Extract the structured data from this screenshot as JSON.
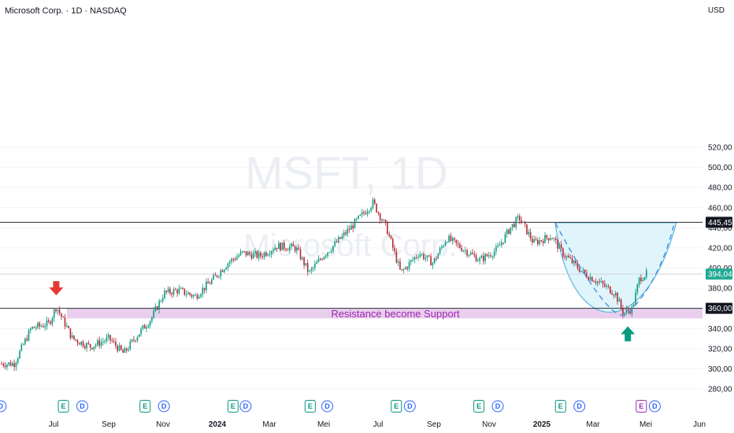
{
  "header": {
    "symbol_title": "Microsoft Corp. · 1D · NASDAQ",
    "currency": "USD"
  },
  "watermark": {
    "ticker": "MSFT, 1D",
    "company": "Microsoft Corp."
  },
  "colors": {
    "up": "#089981",
    "down": "#b22833",
    "zone": "#e1bee7",
    "zone_text": "#9c27b0",
    "bowl_fill": "#e0f4fb",
    "bowl_line": "#5ab8dc",
    "arrow_down": "#e53935",
    "arrow_up": "#089981",
    "price_tag_current": "#22ab94",
    "dividend": "#2962ff",
    "earnings": "#089981",
    "earnings_upcoming": "#9c27b0"
  },
  "chart_data": {
    "type": "candlestick",
    "ylim": [
      270,
      535
    ],
    "y_ticks": [
      "520,00",
      "500,00",
      "480,00",
      "460,00",
      "440,00",
      "420,00",
      "400,00",
      "380,00",
      "360,00",
      "340,00",
      "320,00",
      "300,00",
      "280,00"
    ],
    "x_ticks": [
      "Jul",
      "Sep",
      "Nov",
      "2024",
      "Mar",
      "Mei",
      "Jul",
      "Sep",
      "Nov",
      "2025",
      "Mar",
      "Mei",
      "Jun"
    ],
    "bold_x_ticks": [
      "2024",
      "2025"
    ],
    "price_path": [
      [
        "2023-06-01",
        305
      ],
      [
        "2023-06-20",
        340
      ],
      [
        "2023-07-10",
        345
      ],
      [
        "2023-07-18",
        362
      ],
      [
        "2023-08-05",
        330
      ],
      [
        "2023-08-25",
        322
      ],
      [
        "2023-09-15",
        330
      ],
      [
        "2023-10-01",
        315
      ],
      [
        "2023-10-15",
        332
      ],
      [
        "2023-11-01",
        350
      ],
      [
        "2023-11-15",
        375
      ],
      [
        "2023-12-01",
        378
      ],
      [
        "2023-12-20",
        372
      ],
      [
        "2024-01-10",
        390
      ],
      [
        "2024-01-25",
        405
      ],
      [
        "2024-02-10",
        415
      ],
      [
        "2024-03-01",
        412
      ],
      [
        "2024-03-20",
        422
      ],
      [
        "2024-04-10",
        420
      ],
      [
        "2024-04-25",
        395
      ],
      [
        "2024-05-10",
        412
      ],
      [
        "2024-05-25",
        425
      ],
      [
        "2024-06-10",
        440
      ],
      [
        "2024-07-05",
        465
      ],
      [
        "2024-07-20",
        440
      ],
      [
        "2024-08-05",
        395
      ],
      [
        "2024-08-25",
        415
      ],
      [
        "2024-09-10",
        405
      ],
      [
        "2024-09-25",
        430
      ],
      [
        "2024-10-15",
        418
      ],
      [
        "2024-11-01",
        408
      ],
      [
        "2024-11-20",
        418
      ],
      [
        "2024-12-05",
        440
      ],
      [
        "2024-12-15",
        450
      ],
      [
        "2024-12-31",
        425
      ],
      [
        "2025-01-20",
        432
      ],
      [
        "2025-02-01",
        415
      ],
      [
        "2025-02-25",
        395
      ],
      [
        "2025-03-15",
        385
      ],
      [
        "2025-04-01",
        375
      ],
      [
        "2025-04-10",
        355
      ],
      [
        "2025-04-20",
        360
      ],
      [
        "2025-04-28",
        390
      ],
      [
        "2025-05-05",
        394
      ]
    ],
    "horizontal_levels": [
      {
        "label": "445,45",
        "value": 445.45,
        "style": "dark"
      },
      {
        "label": "394,04",
        "value": 394.04,
        "style": "current"
      },
      {
        "label": "360,00",
        "value": 360,
        "style": "dark"
      }
    ],
    "support_zone": {
      "from": 350,
      "to": 360,
      "label": "Resistance become Support"
    },
    "annotations": [
      {
        "type": "arrow-down",
        "date": "2023-07-18",
        "price": 362
      },
      {
        "type": "arrow-up",
        "date": "2025-04-15",
        "price": 350
      }
    ],
    "cup_pattern": {
      "left": [
        "2025-01-24",
        445
      ],
      "bottom": [
        "2025-04-15",
        350
      ],
      "right": [
        "2025-06-08",
        445
      ]
    },
    "projection_dashed": [
      [
        "2025-01-24",
        445
      ],
      [
        "2025-04-15",
        355
      ],
      [
        "2025-06-05",
        442
      ]
    ],
    "events": [
      {
        "kind": "D",
        "date": "2023-05-17"
      },
      {
        "kind": "E",
        "date": "2023-07-26"
      },
      {
        "kind": "D",
        "date": "2023-08-16"
      },
      {
        "kind": "E",
        "date": "2023-10-25"
      },
      {
        "kind": "D",
        "date": "2023-11-15"
      },
      {
        "kind": "E",
        "date": "2024-01-31"
      },
      {
        "kind": "D",
        "date": "2024-02-14"
      },
      {
        "kind": "E",
        "date": "2024-04-26"
      },
      {
        "kind": "D",
        "date": "2024-05-15"
      },
      {
        "kind": "E",
        "date": "2024-07-31"
      },
      {
        "kind": "D",
        "date": "2024-08-15"
      },
      {
        "kind": "E",
        "date": "2024-10-31"
      },
      {
        "kind": "D",
        "date": "2024-11-21"
      },
      {
        "kind": "E",
        "date": "2025-01-30"
      },
      {
        "kind": "D",
        "date": "2025-02-20"
      },
      {
        "kind": "E",
        "date": "2025-04-30",
        "upcoming": true
      },
      {
        "kind": "D",
        "date": "2025-05-15"
      }
    ]
  }
}
